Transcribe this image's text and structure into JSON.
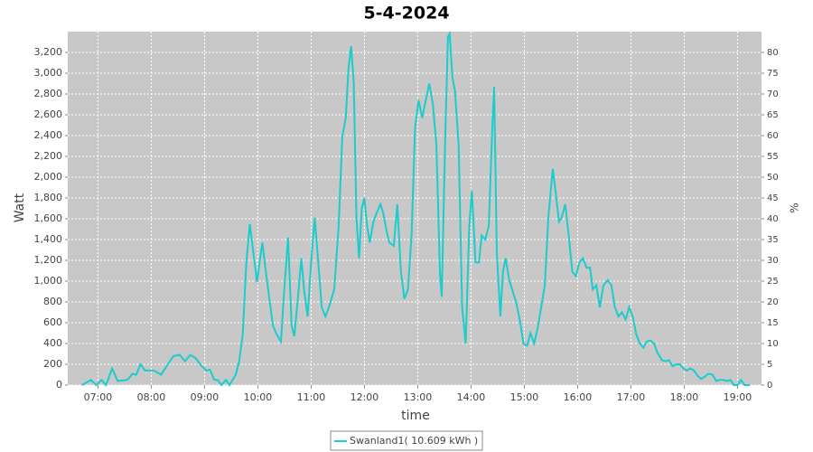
{
  "chart_data": {
    "type": "line",
    "title": "5-4-2024",
    "xlabel": "time",
    "ylabel": "Watt",
    "y2label": "%",
    "x": [
      "06:42",
      "06:52",
      "06:58",
      "07:04",
      "07:09",
      "07:16",
      "07:22",
      "07:33",
      "07:39",
      "07:43",
      "07:48",
      "07:53",
      "08:03",
      "08:11",
      "08:18",
      "08:25",
      "08:32",
      "08:38",
      "08:44",
      "08:50",
      "08:56",
      "09:02",
      "09:06",
      "09:11",
      "09:15",
      "09:19",
      "09:24",
      "09:28",
      "09:35",
      "09:39",
      "09:43",
      "09:47",
      "09:51",
      "09:55",
      "09:59",
      "10:02",
      "10:05",
      "10:09",
      "10:13",
      "10:17",
      "10:21",
      "10:26",
      "10:29",
      "10:34",
      "10:38",
      "10:41",
      "10:45",
      "10:49",
      "10:52",
      "10:56",
      "11:00",
      "11:04",
      "11:08",
      "11:12",
      "11:16",
      "11:20",
      "11:26",
      "11:31",
      "11:35",
      "11:39",
      "11:42",
      "11:45",
      "11:48",
      "11:51",
      "11:54",
      "11:57",
      "12:00",
      "12:03",
      "12:06",
      "12:10",
      "12:14",
      "12:18",
      "12:21",
      "12:25",
      "12:28",
      "12:33",
      "12:37",
      "12:41",
      "12:45",
      "12:49",
      "12:53",
      "12:57",
      "13:01",
      "13:05",
      "13:09",
      "13:13",
      "13:17",
      "13:21",
      "13:25",
      "13:27",
      "13:31",
      "13:34",
      "13:36",
      "13:39",
      "13:42",
      "13:46",
      "13:50",
      "13:54",
      "13:58",
      "14:01",
      "14:05",
      "14:09",
      "14:12",
      "14:16",
      "14:20",
      "14:24",
      "14:26",
      "14:29",
      "14:33",
      "14:36",
      "14:39",
      "14:43",
      "14:47",
      "14:51",
      "14:55",
      "14:59",
      "15:03",
      "15:07",
      "15:11",
      "15:15",
      "15:19",
      "15:23",
      "15:27",
      "15:32",
      "15:35",
      "15:39",
      "15:42",
      "15:46",
      "15:50",
      "15:54",
      "15:58",
      "16:02",
      "16:06",
      "16:10",
      "16:14",
      "16:17",
      "16:21",
      "16:25",
      "16:29",
      "16:34",
      "16:38",
      "16:42",
      "16:46",
      "16:50",
      "16:54",
      "16:58",
      "17:02",
      "17:06",
      "17:10",
      "17:14",
      "17:18",
      "17:22",
      "17:26",
      "17:30",
      "17:35",
      "17:39",
      "17:43",
      "17:47",
      "17:51",
      "17:55",
      "17:59",
      "18:03",
      "18:07",
      "18:11",
      "18:15",
      "18:19",
      "18:23",
      "18:27",
      "18:32",
      "18:36",
      "18:40",
      "18:44",
      "18:48",
      "18:52",
      "18:56",
      "19:00",
      "19:04",
      "19:08",
      "19:14"
    ],
    "series": [
      {
        "name": "Swanland1( 10.609 kWh )",
        "color": "#1ccccc",
        "values": [
          0,
          50,
          0,
          50,
          0,
          160,
          40,
          50,
          110,
          100,
          200,
          140,
          140,
          100,
          190,
          280,
          290,
          230,
          290,
          260,
          190,
          140,
          150,
          50,
          50,
          0,
          50,
          0,
          100,
          230,
          490,
          1180,
          1550,
          1270,
          990,
          1180,
          1370,
          1090,
          830,
          570,
          490,
          420,
          830,
          1420,
          570,
          470,
          830,
          1220,
          920,
          660,
          1180,
          1610,
          1180,
          750,
          660,
          750,
          920,
          1530,
          2390,
          2570,
          3040,
          3260,
          2910,
          1610,
          1220,
          1700,
          1800,
          1530,
          1370,
          1570,
          1660,
          1740,
          1660,
          1480,
          1370,
          1340,
          1740,
          1090,
          830,
          920,
          1440,
          2480,
          2740,
          2570,
          2740,
          2900,
          2700,
          2310,
          1090,
          850,
          2390,
          3350,
          3380,
          2960,
          2830,
          2310,
          750,
          400,
          1530,
          1870,
          1180,
          1180,
          1440,
          1400,
          1530,
          2480,
          2870,
          1270,
          660,
          1090,
          1220,
          1010,
          900,
          790,
          620,
          400,
          380,
          500,
          400,
          550,
          750,
          960,
          1610,
          2080,
          1870,
          1570,
          1610,
          1740,
          1440,
          1090,
          1050,
          1180,
          1220,
          1130,
          1130,
          920,
          960,
          750,
          960,
          1010,
          960,
          750,
          660,
          700,
          630,
          750,
          660,
          490,
          400,
          360,
          420,
          430,
          400,
          310,
          240,
          230,
          240,
          180,
          200,
          200,
          160,
          140,
          160,
          140,
          90,
          60,
          80,
          110,
          100,
          40,
          50,
          50,
          40,
          50,
          0,
          0,
          50,
          0,
          0
        ]
      }
    ],
    "xlim": [
      "06:26",
      "19:27"
    ],
    "xticks": [
      "07:00",
      "08:00",
      "09:00",
      "10:00",
      "11:00",
      "12:00",
      "13:00",
      "14:00",
      "15:00",
      "16:00",
      "17:00",
      "18:00",
      "19:00"
    ],
    "ylim": [
      0,
      3400
    ],
    "yticks": [
      0,
      200,
      400,
      600,
      800,
      {
        "value": 1000,
        "label": "1,000"
      },
      {
        "value": 1200,
        "label": "1,200"
      },
      {
        "value": 1400,
        "label": "1,400"
      },
      {
        "value": 1600,
        "label": "1,600"
      },
      {
        "value": 1800,
        "label": "1,800"
      },
      {
        "value": 2000,
        "label": "2,000"
      },
      {
        "value": 2200,
        "label": "2,200"
      },
      {
        "value": 2400,
        "label": "2,400"
      },
      {
        "value": 2600,
        "label": "2,600"
      },
      {
        "value": 2800,
        "label": "2,800"
      },
      {
        "value": 3000,
        "label": "3,000"
      },
      {
        "value": 3200,
        "label": "3,200"
      }
    ],
    "y2lim": [
      0,
      85
    ],
    "y2ticks": [
      0,
      5,
      10,
      15,
      20,
      25,
      30,
      35,
      40,
      45,
      50,
      55,
      60,
      65,
      70,
      75,
      80
    ],
    "grid": true
  }
}
